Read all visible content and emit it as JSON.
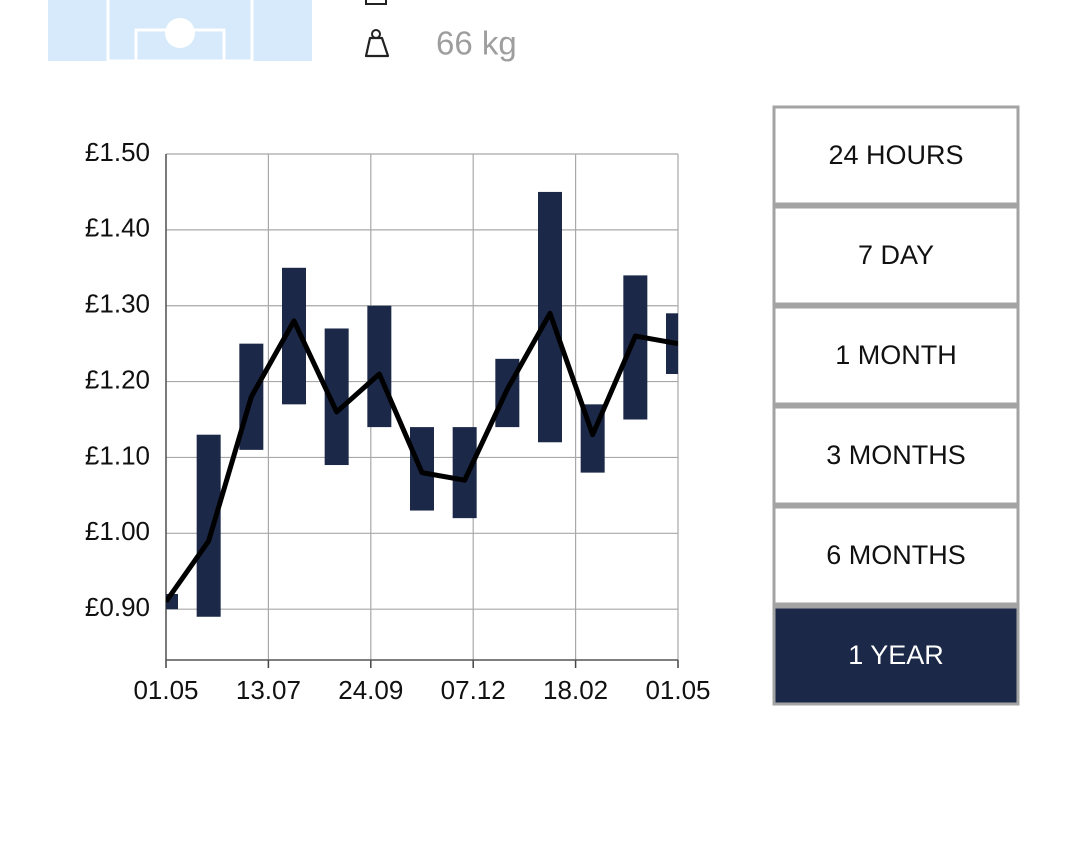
{
  "profile": {
    "weight": "66 kg"
  },
  "chart_data": {
    "type": "range-line",
    "x": [
      0,
      1,
      2,
      3,
      4,
      5,
      6,
      7,
      8,
      9,
      10,
      11,
      12
    ],
    "values": [
      0.91,
      0.99,
      1.18,
      1.28,
      1.16,
      1.21,
      1.08,
      1.07,
      1.19,
      1.29,
      1.13,
      1.26,
      1.25
    ],
    "low": [
      0.9,
      0.89,
      1.11,
      1.17,
      1.09,
      1.14,
      1.03,
      1.02,
      1.14,
      1.12,
      1.08,
      1.15,
      1.21
    ],
    "high": [
      0.92,
      1.13,
      1.25,
      1.35,
      1.27,
      1.3,
      1.14,
      1.14,
      1.23,
      1.45,
      1.17,
      1.34,
      1.29
    ],
    "color": "#1b2847",
    "line_color": "#000000",
    "xlim": [
      0,
      12
    ],
    "xticks": [
      {
        "value": 0,
        "label": "01.05"
      },
      {
        "value": 2.4,
        "label": "13.07"
      },
      {
        "value": 4.8,
        "label": "24.09"
      },
      {
        "value": 7.2,
        "label": "07.12"
      },
      {
        "value": 9.6,
        "label": "18.02"
      },
      {
        "value": 12,
        "label": "01.05"
      }
    ],
    "ylim": [
      0.833,
      1.5
    ],
    "yticks": [
      {
        "value": 0.9,
        "label": "£0.90"
      },
      {
        "value": 1.0,
        "label": "£1.00"
      },
      {
        "value": 1.1,
        "label": "£1.10"
      },
      {
        "value": 1.2,
        "label": "£1.20"
      },
      {
        "value": 1.3,
        "label": "£1.30"
      },
      {
        "value": 1.4,
        "label": "£1.40"
      },
      {
        "value": 1.5,
        "label": "£1.50"
      }
    ],
    "grid": true
  },
  "buttons": [
    "24 HOURS",
    "7 DAY",
    "1 MONTH",
    "3 MONTHS",
    "6 MONTHS",
    "1 YEAR"
  ],
  "selected_button": 5
}
